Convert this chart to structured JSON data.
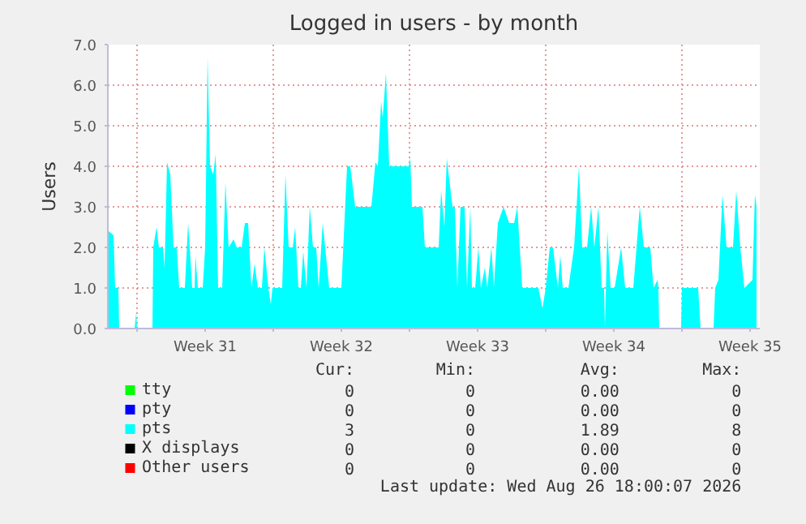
{
  "chart_data": {
    "type": "area",
    "title": "Logged in users - by month",
    "ylabel": "Users",
    "xlim": [
      "2026-07-25T12:00",
      "2026-08-28T00:00"
    ],
    "ylim": [
      0,
      7
    ],
    "xticks": [
      {
        "value": "2026-07-27T00:00",
        "label": null
      },
      {
        "value": "2026-07-30T12:00",
        "label": "Week 31"
      },
      {
        "value": "2026-08-03T00:00",
        "label": null
      },
      {
        "value": "2026-08-06T12:00",
        "label": "Week 32"
      },
      {
        "value": "2026-08-10T00:00",
        "label": null
      },
      {
        "value": "2026-08-13T12:00",
        "label": "Week 33"
      },
      {
        "value": "2026-08-17T00:00",
        "label": null
      },
      {
        "value": "2026-08-20T12:00",
        "label": "Week 34"
      },
      {
        "value": "2026-08-24T00:00",
        "label": null
      },
      {
        "value": "2026-08-27T12:00",
        "label": "Week 35"
      }
    ],
    "yticks": [
      {
        "value": 0,
        "label": "0.0"
      },
      {
        "value": 1,
        "label": "1.0"
      },
      {
        "value": 2,
        "label": "2.0"
      },
      {
        "value": 3,
        "label": "3.0"
      },
      {
        "value": 4,
        "label": "4.0"
      },
      {
        "value": 5,
        "label": "5.0"
      },
      {
        "value": 6,
        "label": "6.0"
      },
      {
        "value": 7,
        "label": "7.0"
      }
    ],
    "grid": true,
    "legend": "bottom",
    "series": [
      {
        "name": "tty",
        "color": "#00ff00"
      },
      {
        "name": "pty",
        "color": "#0000ff"
      },
      {
        "name": "pts",
        "color": "#00ffff",
        "x": [
          "2026-07-25T13:00",
          "2026-07-25T19:00",
          "2026-07-25T21:00",
          "2026-07-26T01:00",
          "2026-07-26T02:00",
          "2026-07-26T21:00",
          "2026-07-26T23:00",
          "2026-07-27T00:00",
          "2026-07-27T19:00",
          "2026-07-27T20:00",
          "2026-07-28T00:00",
          "2026-07-28T03:00",
          "2026-07-28T08:00",
          "2026-07-28T10:00",
          "2026-07-28T13:00",
          "2026-07-28T17:00",
          "2026-07-28T21:00",
          "2026-07-29T01:00",
          "2026-07-29T04:00",
          "2026-07-29T11:00",
          "2026-07-29T15:00",
          "2026-07-29T17:00",
          "2026-07-29T20:00",
          "2026-07-29T23:00",
          "2026-07-30T00:00",
          "2026-07-30T03:00",
          "2026-07-30T09:00",
          "2026-07-30T12:00",
          "2026-07-30T15:00",
          "2026-07-30T18:00",
          "2026-07-30T22:00",
          "2026-07-31T01:00",
          "2026-07-31T04:00",
          "2026-07-31T09:00",
          "2026-07-31T13:00",
          "2026-07-31T17:00",
          "2026-07-31T23:00",
          "2026-08-01T03:00",
          "2026-08-01T09:00",
          "2026-08-01T13:00",
          "2026-08-01T17:00",
          "2026-08-01T21:00",
          "2026-08-02T01:00",
          "2026-08-02T05:00",
          "2026-08-02T10:00",
          "2026-08-02T13:00",
          "2026-08-02T18:00",
          "2026-08-02T21:00",
          "2026-08-02T23:00",
          "2026-08-03T11:00",
          "2026-08-03T15:00",
          "2026-08-03T19:00",
          "2026-08-04T00:00",
          "2026-08-04T03:00",
          "2026-08-04T07:00",
          "2026-08-04T10:00",
          "2026-08-04T13:00",
          "2026-08-04T17:00",
          "2026-08-04T21:00",
          "2026-08-05T01:00",
          "2026-08-05T05:00",
          "2026-08-05T08:00",
          "2026-08-05T13:00",
          "2026-08-05T16:00",
          "2026-08-05T21:00",
          "2026-08-06T12:00",
          "2026-08-06T19:00",
          "2026-08-06T23:00",
          "2026-08-07T05:00",
          "2026-08-08T01:00",
          "2026-08-08T06:00",
          "2026-08-08T09:00",
          "2026-08-08T13:00",
          "2026-08-08T15:00",
          "2026-08-08T19:00",
          "2026-08-08T23:00",
          "2026-08-09T07:00",
          "2026-08-09T23:00",
          "2026-08-10T01:00",
          "2026-08-10T03:00",
          "2026-08-10T16:00",
          "2026-08-10T19:00",
          "2026-08-11T12:00",
          "2026-08-11T15:00",
          "2026-08-11T19:00",
          "2026-08-11T22:00",
          "2026-08-12T05:00",
          "2026-08-12T08:00",
          "2026-08-12T11:00",
          "2026-08-12T15:00",
          "2026-08-12T20:00",
          "2026-08-12T23:00",
          "2026-08-13T03:00",
          "2026-08-13T05:00",
          "2026-08-13T09:00",
          "2026-08-13T13:00",
          "2026-08-13T16:00",
          "2026-08-13T21:00",
          "2026-08-14T00:00",
          "2026-08-14T05:00",
          "2026-08-14T08:00",
          "2026-08-14T13:00",
          "2026-08-14T20:00",
          "2026-08-15T03:00",
          "2026-08-15T09:00",
          "2026-08-15T13:00",
          "2026-08-15T16:00",
          "2026-08-15T19:00",
          "2026-08-16T15:00",
          "2026-08-16T20:00",
          "2026-08-17T00:00",
          "2026-08-17T05:00",
          "2026-08-17T09:00",
          "2026-08-17T15:00",
          "2026-08-17T18:00",
          "2026-08-17T21:00",
          "2026-08-18T04:00",
          "2026-08-18T11:00",
          "2026-08-18T17:00",
          "2026-08-18T21:00",
          "2026-08-19T03:00",
          "2026-08-19T08:00",
          "2026-08-19T12:00",
          "2026-08-19T17:00",
          "2026-08-19T21:00",
          "2026-08-20T00:00",
          "2026-08-20T01:00",
          "2026-08-20T04:00",
          "2026-08-20T08:00",
          "2026-08-20T13:00",
          "2026-08-20T21:00",
          "2026-08-21T02:00",
          "2026-08-21T12:00",
          "2026-08-21T20:00",
          "2026-08-22T01:00",
          "2026-08-22T09:00",
          "2026-08-22T13:00",
          "2026-08-22T18:00",
          "2026-08-22T19:00",
          "2026-08-22T20:00",
          "2026-08-23T23:00",
          "2026-08-24T00:00",
          "2026-08-24T20:00",
          "2026-08-24T23:00",
          "2026-08-25T15:00",
          "2026-08-25T17:00",
          "2026-08-25T21:00",
          "2026-08-26T02:00",
          "2026-08-26T07:00",
          "2026-08-26T15:00",
          "2026-08-26T19:00",
          "2026-08-27T00:00",
          "2026-08-27T05:00",
          "2026-08-27T15:00",
          "2026-08-27T18:00",
          "2026-08-27T20:00"
        ],
        "values": [
          2.4,
          2.3,
          1.0,
          1.0,
          0,
          0,
          0.4,
          0,
          0,
          2.0,
          2.5,
          2.0,
          2.0,
          1.5,
          4.1,
          3.8,
          2.0,
          2.0,
          1.0,
          1.0,
          2.6,
          2.0,
          1.0,
          1.0,
          1.8,
          1.0,
          1.0,
          2.0,
          6.7,
          4.0,
          3.8,
          4.3,
          1.0,
          1.0,
          3.6,
          2.0,
          2.2,
          2.0,
          2.0,
          2.6,
          2.6,
          1.0,
          1.6,
          1.0,
          1.0,
          2.0,
          1.0,
          0.6,
          1.0,
          1.0,
          3.8,
          2.0,
          2.0,
          2.5,
          1.0,
          1.0,
          1.9,
          1.0,
          3.0,
          2.0,
          2.0,
          1.0,
          2.6,
          2.0,
          1.0,
          1.0,
          4.0,
          4.0,
          3.0,
          3.0,
          4.1,
          4.0,
          5.6,
          5.2,
          6.3,
          4.0,
          4.0,
          4.0,
          4.2,
          3.0,
          3.0,
          2.0,
          2.0,
          3.4,
          2.5,
          4.2,
          3.0,
          3.0,
          1.0,
          3.0,
          3.0,
          1.0,
          3.0,
          1.0,
          1.0,
          2.0,
          1.0,
          1.5,
          1.0,
          2.0,
          1.0,
          2.6,
          3.0,
          2.6,
          2.6,
          3.0,
          2.0,
          1.0,
          1.0,
          0.5,
          1.0,
          2.0,
          2.0,
          1.0,
          1.8,
          1.0,
          1.0,
          2.0,
          4.0,
          2.0,
          2.0,
          3.0,
          2.0,
          3.0,
          1.0,
          1.0,
          0,
          2.4,
          1.0,
          1.0,
          2.0,
          1.0,
          1.0,
          3.0,
          2.0,
          2.0,
          1.0,
          1.2,
          1.0,
          0,
          0,
          1.0,
          1.0,
          0,
          0,
          1.0,
          1.2,
          3.3,
          2.0,
          2.0,
          3.4,
          2.0,
          1.0,
          1.2,
          3.3,
          3.0
        ]
      },
      {
        "name": "X displays",
        "color": "#000000"
      },
      {
        "name": "Other users",
        "color": "#ff0000"
      }
    ],
    "annotations": [
      "Cur:",
      "Min:",
      "Avg:",
      "Max:",
      "0",
      "0",
      "0.00",
      "0",
      "0",
      "0",
      "0.00",
      "0",
      "3",
      "0",
      "1.89",
      "8",
      "0",
      "0",
      "0.00",
      "0",
      "0",
      "0",
      "0.00",
      "0",
      "Last update: Wed Aug 26 18:00:07 2026"
    ]
  }
}
